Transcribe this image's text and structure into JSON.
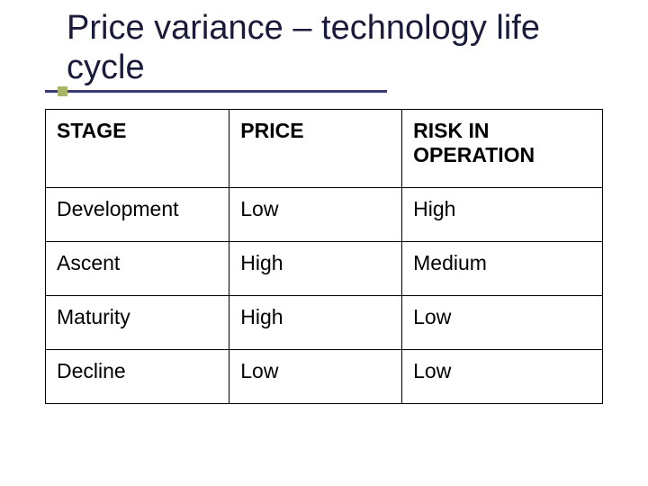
{
  "title": "Price variance – technology life cycle",
  "table": {
    "columns": [
      "STAGE",
      "PRICE",
      "RISK IN OPERATION"
    ],
    "rows": [
      [
        "Development",
        "Low",
        "High"
      ],
      [
        "Ascent",
        "High",
        "Medium"
      ],
      [
        "Maturity",
        "High",
        "Low"
      ],
      [
        "Decline",
        "Low",
        "Low"
      ]
    ],
    "border_color": "#000000",
    "header_fontweight": 700,
    "cell_fontsize": 23
  },
  "accent": {
    "underline_color": "#3a3a7a",
    "square_color": "#a8b566",
    "title_color": "#1a1a3a"
  }
}
